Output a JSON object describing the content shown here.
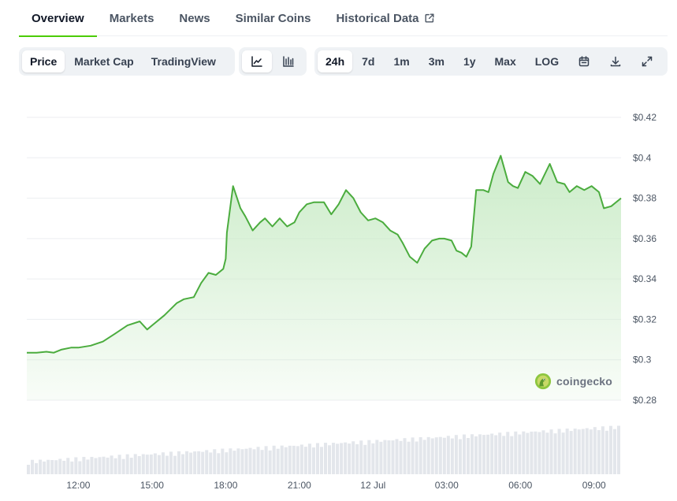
{
  "tabs": [
    {
      "label": "Overview",
      "active": true
    },
    {
      "label": "Markets"
    },
    {
      "label": "News"
    },
    {
      "label": "Similar Coins"
    },
    {
      "label": "Historical Data",
      "external": true
    }
  ],
  "toolbar": {
    "view_modes": [
      {
        "label": "Price",
        "active": true
      },
      {
        "label": "Market Cap"
      },
      {
        "label": "TradingView"
      }
    ],
    "chart_styles": [
      {
        "icon": "line-chart-icon",
        "active": true
      },
      {
        "icon": "candlestick-chart-icon"
      }
    ],
    "ranges": [
      {
        "label": "24h",
        "active": true
      },
      {
        "label": "7d"
      },
      {
        "label": "1m"
      },
      {
        "label": "3m"
      },
      {
        "label": "1y"
      },
      {
        "label": "Max"
      },
      {
        "label": "LOG"
      }
    ],
    "actions": [
      "calendar-icon",
      "download-icon",
      "fullscreen-icon"
    ]
  },
  "watermark": {
    "text": "coingecko"
  },
  "colors": {
    "line": "#4bac3e",
    "fill_top": "#c9ebc6",
    "accent": "#4bcc00",
    "volume": "#e3e6eb"
  },
  "chart_data": {
    "type": "area",
    "title": "",
    "xlabel": "",
    "ylabel": "",
    "x_ticks": [
      {
        "label": "12:00",
        "hour": 12
      },
      {
        "label": "15:00",
        "hour": 15
      },
      {
        "label": "18:00",
        "hour": 18
      },
      {
        "label": "21:00",
        "hour": 21
      },
      {
        "label": "12 Jul",
        "hour": 24
      },
      {
        "label": "03:00",
        "hour": 27
      },
      {
        "label": "06:00",
        "hour": 30
      },
      {
        "label": "09:00",
        "hour": 33
      }
    ],
    "y_ticks": [
      {
        "label": "$0.42",
        "value": 0.42
      },
      {
        "label": "$0.4",
        "value": 0.4
      },
      {
        "label": "$0.38",
        "value": 0.38
      },
      {
        "label": "$0.36",
        "value": 0.36
      },
      {
        "label": "$0.34",
        "value": 0.34
      },
      {
        "label": "$0.32",
        "value": 0.32
      },
      {
        "label": "$0.3",
        "value": 0.3
      },
      {
        "label": "$0.28",
        "value": 0.28
      }
    ],
    "ylim": [
      0.28,
      0.42
    ],
    "xlim": [
      9.9,
      34.1
    ],
    "grid": true,
    "series": [
      {
        "x": [
          9.9,
          10.3,
          10.7,
          11.0,
          11.3,
          11.7,
          12.0,
          12.5,
          13.0,
          13.5,
          14.0,
          14.5,
          14.8,
          15.0,
          15.5,
          16.0,
          16.3,
          16.7,
          17.0,
          17.3,
          17.6,
          17.9,
          18.0,
          18.05,
          18.3,
          18.6,
          18.8,
          19.1,
          19.4,
          19.6,
          19.9,
          20.2,
          20.5,
          20.8,
          21.0,
          21.3,
          21.6,
          22.0,
          22.3,
          22.6,
          22.9,
          23.2,
          23.5,
          23.8,
          24.1,
          24.4,
          24.7,
          25.0,
          25.2,
          25.5,
          25.8,
          26.1,
          26.4,
          26.7,
          26.9,
          27.2,
          27.4,
          27.6,
          27.8,
          28.0,
          28.2,
          28.5,
          28.7,
          28.9,
          29.2,
          29.5,
          29.7,
          29.9,
          30.2,
          30.5,
          30.8,
          31.2,
          31.5,
          31.8,
          32.0,
          32.3,
          32.6,
          32.9,
          33.2,
          33.4,
          33.7,
          34.1
        ],
        "y": [
          0.3035,
          0.3035,
          0.304,
          0.3035,
          0.305,
          0.306,
          0.306,
          0.307,
          0.309,
          0.313,
          0.317,
          0.319,
          0.315,
          0.317,
          0.322,
          0.328,
          0.33,
          0.331,
          0.338,
          0.343,
          0.342,
          0.345,
          0.35,
          0.363,
          0.386,
          0.375,
          0.371,
          0.364,
          0.368,
          0.37,
          0.366,
          0.37,
          0.366,
          0.368,
          0.373,
          0.377,
          0.378,
          0.378,
          0.372,
          0.377,
          0.384,
          0.38,
          0.373,
          0.369,
          0.37,
          0.368,
          0.364,
          0.362,
          0.358,
          0.351,
          0.348,
          0.355,
          0.359,
          0.36,
          0.36,
          0.359,
          0.354,
          0.353,
          0.351,
          0.356,
          0.384,
          0.384,
          0.383,
          0.392,
          0.401,
          0.388,
          0.386,
          0.385,
          0.393,
          0.391,
          0.387,
          0.397,
          0.388,
          0.387,
          0.383,
          0.386,
          0.384,
          0.386,
          0.383,
          0.375,
          0.376,
          0.38
        ]
      }
    ]
  }
}
